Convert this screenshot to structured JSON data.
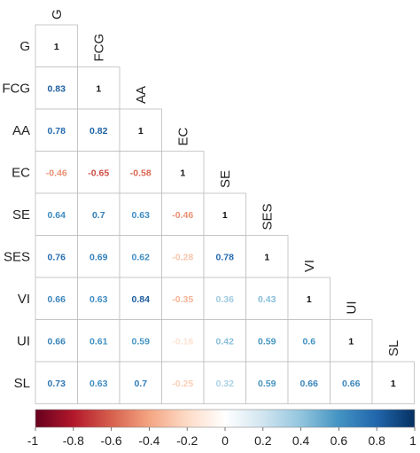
{
  "chart_data": {
    "type": "heatmap",
    "variables": [
      "G",
      "FCG",
      "AA",
      "EC",
      "SE",
      "SES",
      "VI",
      "UI",
      "SL"
    ],
    "matrix_lower": [
      [
        1
      ],
      [
        0.83,
        1
      ],
      [
        0.78,
        0.82,
        1
      ],
      [
        -0.46,
        -0.65,
        -0.58,
        1
      ],
      [
        0.64,
        0.7,
        0.63,
        -0.46,
        1
      ],
      [
        0.76,
        0.69,
        0.62,
        -0.28,
        0.78,
        1
      ],
      [
        0.66,
        0.63,
        0.84,
        -0.35,
        0.36,
        0.43,
        1
      ],
      [
        0.66,
        0.61,
        0.59,
        -0.16,
        0.42,
        0.59,
        0.6,
        1
      ],
      [
        0.73,
        0.63,
        0.7,
        -0.25,
        0.32,
        0.59,
        0.66,
        0.66,
        1
      ]
    ],
    "cell_text": [
      [
        "1"
      ],
      [
        "0.83",
        "1"
      ],
      [
        "0.78",
        "0.82",
        "1"
      ],
      [
        "-0.46",
        "-0.65",
        "-0.58",
        "1"
      ],
      [
        "0.64",
        "0.7",
        "0.63",
        "-0.46",
        "1"
      ],
      [
        "0.76",
        "0.69",
        "0.62",
        "-0.28",
        "0.78",
        "1"
      ],
      [
        "0.66",
        "0.63",
        "0.84",
        "-0.35",
        "0.36",
        "0.43",
        "1"
      ],
      [
        "0.66",
        "0.61",
        "0.59",
        "-0.16",
        "0.42",
        "0.59",
        "0.6",
        "1"
      ],
      [
        "0.73",
        "0.63",
        "0.7",
        "-0.25",
        "0.32",
        "0.59",
        "0.66",
        "0.66",
        "1"
      ]
    ],
    "color_scale": {
      "range": [
        -1,
        1
      ],
      "stops": [
        "#67001f",
        "#b2182b",
        "#d6604d",
        "#f4a582",
        "#fddbc7",
        "#ffffff",
        "#d1e5f0",
        "#92c5de",
        "#4393c3",
        "#2166ac",
        "#053061"
      ],
      "ticks": [
        "-1",
        "-0.8",
        "-0.6",
        "-0.4",
        "-0.2",
        "0",
        "0.2",
        "0.4",
        "0.6",
        "0.8",
        "1"
      ]
    },
    "layout": "lower-triangle",
    "legend": "bottom"
  }
}
